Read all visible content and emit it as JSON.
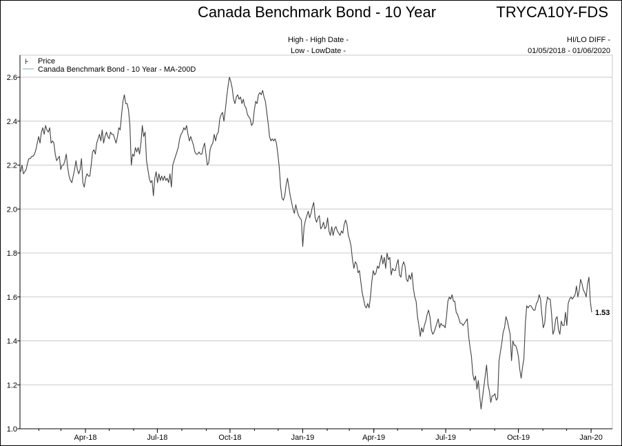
{
  "chart_data": {
    "type": "line",
    "title": "Canada Benchmark Bond - 10 Year",
    "ticker": "TRYCA10Y-FDS",
    "info": {
      "high": "High - High Date -",
      "low": "Low - LowDate -",
      "hilo_diff": "HI/LO DIFF -",
      "range": "01/05/2018 - 01/06/2020"
    },
    "legend": {
      "placement": "top-left",
      "entries": [
        {
          "label": "Price",
          "symbol": "price-tick"
        },
        {
          "label": "Canada Benchmark Bond - 10 Year - MA-200D",
          "symbol": "line",
          "color": "#7fa7c0"
        }
      ]
    },
    "xlabel": "",
    "ylabel": "",
    "ylim": [
      1.0,
      2.7
    ],
    "y_ticks": [
      "1.0",
      "1.2",
      "1.4",
      "1.6",
      "1.8",
      "2.0",
      "2.2",
      "2.4",
      "2.6"
    ],
    "x_axis_unit": "days since 2018-01-01",
    "x_ticks": [
      {
        "label": "Apr-18",
        "day": 90
      },
      {
        "label": "Jul-18",
        "day": 181
      },
      {
        "label": "Oct-18",
        "day": 273
      },
      {
        "label": "Jan-19",
        "day": 365
      },
      {
        "label": "Apr-19",
        "day": 455
      },
      {
        "label": "Jul-19",
        "day": 546
      },
      {
        "label": "Oct-19",
        "day": 638
      },
      {
        "label": "Jan-20",
        "day": 730
      }
    ],
    "grid": true,
    "last_value_label": "1.53",
    "series": [
      {
        "name": "Price",
        "color": "#404040",
        "start_day": 4,
        "end_day": 735,
        "values": [
          2.17,
          2.2,
          2.16,
          2.17,
          2.18,
          2.21,
          2.23,
          2.23,
          2.24,
          2.24,
          2.25,
          2.27,
          2.3,
          2.33,
          2.3,
          2.35,
          2.37,
          2.34,
          2.38,
          2.36,
          2.35,
          2.37,
          2.3,
          2.31,
          2.3,
          2.25,
          2.22,
          2.23,
          2.24,
          2.18,
          2.2,
          2.2,
          2.22,
          2.25,
          2.19,
          2.15,
          2.13,
          2.12,
          2.15,
          2.18,
          2.22,
          2.18,
          2.16,
          2.18,
          2.23,
          2.12,
          2.1,
          2.14,
          2.16,
          2.15,
          2.15,
          2.2,
          2.26,
          2.27,
          2.25,
          2.3,
          2.32,
          2.34,
          2.31,
          2.36,
          2.3,
          2.33,
          2.35,
          2.33,
          2.32,
          2.35,
          2.34,
          2.34,
          2.32,
          2.3,
          2.33,
          2.37,
          2.36,
          2.43,
          2.49,
          2.52,
          2.48,
          2.48,
          2.45,
          2.38,
          2.2,
          2.25,
          2.24,
          2.28,
          2.26,
          2.28,
          2.25,
          2.3,
          2.38,
          2.33,
          2.35,
          2.22,
          2.18,
          2.14,
          2.12,
          2.13,
          2.06,
          2.14,
          2.17,
          2.12,
          2.16,
          2.13,
          2.15,
          2.13,
          2.15,
          2.13,
          2.14,
          2.12,
          2.16,
          2.1,
          2.2,
          2.22,
          2.24,
          2.26,
          2.28,
          2.32,
          2.34,
          2.35,
          2.37,
          2.36,
          2.38,
          2.34,
          2.31,
          2.33,
          2.31,
          2.29,
          2.26,
          2.25,
          2.25,
          2.26,
          2.25,
          2.25,
          2.28,
          2.3,
          2.25,
          2.2,
          2.21,
          2.27,
          2.29,
          2.3,
          2.34,
          2.31,
          2.34,
          2.35,
          2.41,
          2.43,
          2.44,
          2.4,
          2.45,
          2.51,
          2.56,
          2.6,
          2.58,
          2.55,
          2.5,
          2.48,
          2.51,
          2.52,
          2.5,
          2.51,
          2.48,
          2.5,
          2.47,
          2.46,
          2.43,
          2.42,
          2.41,
          2.38,
          2.39,
          2.45,
          2.49,
          2.48,
          2.52,
          2.53,
          2.52,
          2.54,
          2.51,
          2.49,
          2.44,
          2.39,
          2.33,
          2.31,
          2.32,
          2.31,
          2.32,
          2.3,
          2.25,
          2.19,
          2.1,
          2.05,
          2.04,
          2.06,
          2.11,
          2.14,
          2.1,
          2.06,
          2.03,
          2.0,
          1.98,
          2.02,
          1.99,
          1.97,
          1.96,
          1.95,
          1.83,
          1.92,
          1.95,
          1.97,
          1.99,
          1.96,
          1.98,
          2.01,
          2.03,
          1.96,
          1.94,
          1.96,
          1.97,
          1.91,
          1.92,
          1.94,
          1.91,
          1.92,
          1.96,
          1.9,
          1.88,
          1.92,
          1.88,
          1.91,
          1.92,
          1.9,
          1.89,
          1.88,
          1.9,
          1.89,
          1.93,
          1.95,
          1.93,
          1.88,
          1.86,
          1.83,
          1.77,
          1.73,
          1.76,
          1.75,
          1.71,
          1.72,
          1.67,
          1.62,
          1.59,
          1.56,
          1.55,
          1.57,
          1.55,
          1.6,
          1.67,
          1.72,
          1.7,
          1.71,
          1.74,
          1.73,
          1.76,
          1.79,
          1.75,
          1.78,
          1.73,
          1.8,
          1.77,
          1.78,
          1.7,
          1.73,
          1.72,
          1.72,
          1.75,
          1.77,
          1.7,
          1.69,
          1.74,
          1.76,
          1.74,
          1.68,
          1.67,
          1.7,
          1.68,
          1.71,
          1.64,
          1.6,
          1.58,
          1.51,
          1.47,
          1.42,
          1.46,
          1.44,
          1.47,
          1.49,
          1.52,
          1.54,
          1.51,
          1.45,
          1.43,
          1.44,
          1.46,
          1.48,
          1.5,
          1.46,
          1.48,
          1.47,
          1.47,
          1.46,
          1.51,
          1.58,
          1.6,
          1.59,
          1.61,
          1.58,
          1.58,
          1.53,
          1.52,
          1.5,
          1.48,
          1.48,
          1.47,
          1.48,
          1.49,
          1.5,
          1.42,
          1.37,
          1.33,
          1.25,
          1.22,
          1.24,
          1.18,
          1.22,
          1.15,
          1.09,
          1.14,
          1.19,
          1.24,
          1.29,
          1.2,
          1.17,
          1.12,
          1.15,
          1.15,
          1.16,
          1.13,
          1.14,
          1.31,
          1.35,
          1.39,
          1.44,
          1.46,
          1.51,
          1.49,
          1.46,
          1.43,
          1.31,
          1.4,
          1.38,
          1.38,
          1.36,
          1.33,
          1.27,
          1.23,
          1.28,
          1.32,
          1.48,
          1.56,
          1.55,
          1.56,
          1.56,
          1.55,
          1.54,
          1.54,
          1.57,
          1.58,
          1.61,
          1.59,
          1.52,
          1.46,
          1.48,
          1.56,
          1.6,
          1.59,
          1.59,
          1.52,
          1.43,
          1.45,
          1.5,
          1.51,
          1.45,
          1.43,
          1.49,
          1.47,
          1.47,
          1.53,
          1.47,
          1.57,
          1.59,
          1.6,
          1.59,
          1.6,
          1.61,
          1.65,
          1.6,
          1.63,
          1.68,
          1.66,
          1.63,
          1.62,
          1.6,
          1.66,
          1.69,
          1.58,
          1.53
        ]
      }
    ]
  }
}
